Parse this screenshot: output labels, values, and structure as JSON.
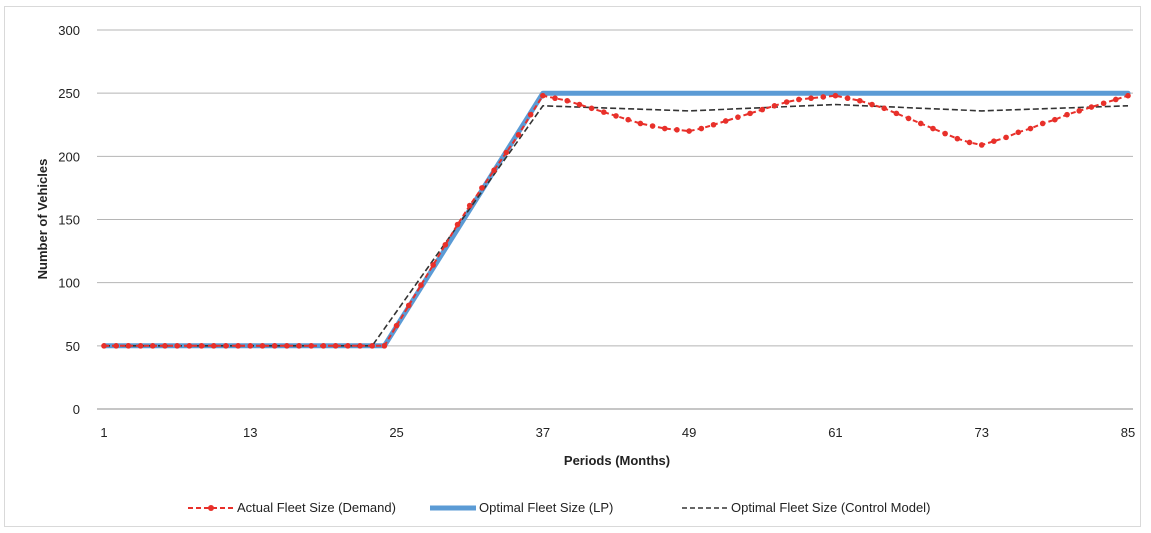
{
  "chart_data": {
    "type": "line",
    "title": "",
    "xlabel": "Periods (Months)",
    "ylabel": "Number of Vehicles",
    "xlim": [
      1,
      85
    ],
    "ylim": [
      0,
      300
    ],
    "x_ticks": [
      1,
      13,
      25,
      37,
      49,
      61,
      73,
      85
    ],
    "y_ticks": [
      0,
      50,
      100,
      150,
      200,
      250,
      300
    ],
    "grid": "horizontal",
    "legend_position": "bottom",
    "series": [
      {
        "name": "Actual Fleet Size (Demand)",
        "color": "#e8302a",
        "style": "dashed-markers",
        "points": [
          [
            1,
            50
          ],
          [
            2,
            50
          ],
          [
            3,
            50
          ],
          [
            4,
            50
          ],
          [
            5,
            50
          ],
          [
            6,
            50
          ],
          [
            7,
            50
          ],
          [
            8,
            50
          ],
          [
            9,
            50
          ],
          [
            10,
            50
          ],
          [
            11,
            50
          ],
          [
            12,
            50
          ],
          [
            13,
            50
          ],
          [
            14,
            50
          ],
          [
            15,
            50
          ],
          [
            16,
            50
          ],
          [
            17,
            50
          ],
          [
            18,
            50
          ],
          [
            19,
            50
          ],
          [
            20,
            50
          ],
          [
            21,
            50
          ],
          [
            22,
            50
          ],
          [
            23,
            50
          ],
          [
            24,
            50
          ],
          [
            25,
            66
          ],
          [
            26,
            82
          ],
          [
            27,
            98
          ],
          [
            28,
            114
          ],
          [
            29,
            130
          ],
          [
            30,
            146
          ],
          [
            31,
            161
          ],
          [
            32,
            175
          ],
          [
            33,
            189
          ],
          [
            34,
            203
          ],
          [
            35,
            217
          ],
          [
            36,
            233
          ],
          [
            37,
            248
          ],
          [
            38,
            246
          ],
          [
            39,
            244
          ],
          [
            40,
            241
          ],
          [
            41,
            238
          ],
          [
            42,
            235
          ],
          [
            43,
            232
          ],
          [
            44,
            229
          ],
          [
            45,
            226
          ],
          [
            46,
            224
          ],
          [
            47,
            222
          ],
          [
            48,
            221
          ],
          [
            49,
            220
          ],
          [
            50,
            222
          ],
          [
            51,
            225
          ],
          [
            52,
            228
          ],
          [
            53,
            231
          ],
          [
            54,
            234
          ],
          [
            55,
            237
          ],
          [
            56,
            240
          ],
          [
            57,
            243
          ],
          [
            58,
            245
          ],
          [
            59,
            246
          ],
          [
            60,
            247
          ],
          [
            61,
            248
          ],
          [
            62,
            246
          ],
          [
            63,
            244
          ],
          [
            64,
            241
          ],
          [
            65,
            238
          ],
          [
            66,
            234
          ],
          [
            67,
            230
          ],
          [
            68,
            226
          ],
          [
            69,
            222
          ],
          [
            70,
            218
          ],
          [
            71,
            214
          ],
          [
            72,
            211
          ],
          [
            73,
            209
          ],
          [
            74,
            212
          ],
          [
            75,
            215
          ],
          [
            76,
            219
          ],
          [
            77,
            222
          ],
          [
            78,
            226
          ],
          [
            79,
            229
          ],
          [
            80,
            233
          ],
          [
            81,
            236
          ],
          [
            82,
            239
          ],
          [
            83,
            242
          ],
          [
            84,
            245
          ],
          [
            85,
            248
          ]
        ]
      },
      {
        "name": "Optimal Fleet Size (LP)",
        "color": "#5b9bd5",
        "style": "solid-thick",
        "points": [
          [
            1,
            50
          ],
          [
            24,
            50
          ],
          [
            37,
            250
          ],
          [
            85,
            250
          ]
        ]
      },
      {
        "name": "Optimal Fleet Size (Control Model)",
        "color": "#333333",
        "style": "dashed",
        "points": [
          [
            1,
            50
          ],
          [
            23,
            50
          ],
          [
            37,
            240
          ],
          [
            49,
            236
          ],
          [
            61,
            241
          ],
          [
            73,
            236
          ],
          [
            85,
            240
          ]
        ]
      }
    ]
  }
}
